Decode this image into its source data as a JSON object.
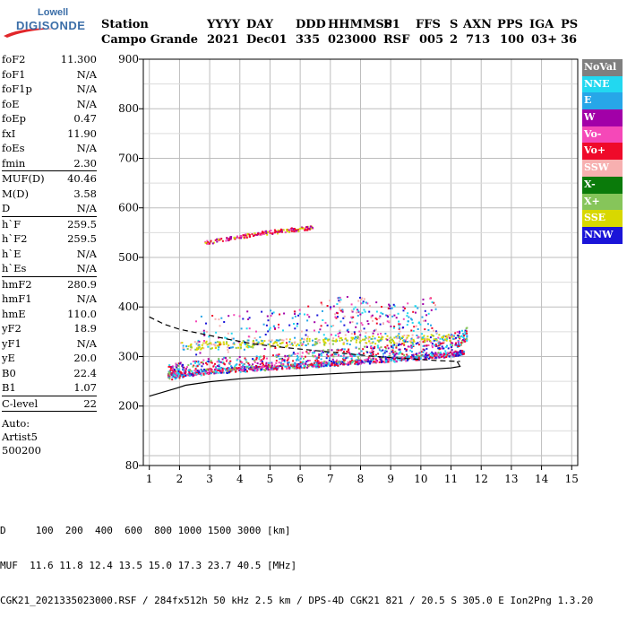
{
  "logo": {
    "line1": "Lowell",
    "line2": "DIGISONDE"
  },
  "header": {
    "labels": [
      "Station",
      "YYYY",
      "DAY",
      "DDD",
      "HHMMSS",
      "P1",
      "FFS",
      "S",
      "AXN",
      "PPS",
      "IGA",
      "PS"
    ],
    "values": [
      "Campo Grande",
      "2021",
      "Dec01",
      "335",
      "023000",
      "RSF",
      "005",
      "2",
      "713",
      "100",
      "03+",
      "36"
    ]
  },
  "params": {
    "group1": [
      {
        "k": "foF2",
        "v": "11.300"
      },
      {
        "k": "foF1",
        "v": "N/A"
      },
      {
        "k": "foF1p",
        "v": "N/A"
      },
      {
        "k": "foE",
        "v": "N/A"
      },
      {
        "k": "foEp",
        "v": "0.47"
      },
      {
        "k": "fxI",
        "v": "11.90"
      },
      {
        "k": "foEs",
        "v": "N/A"
      },
      {
        "k": "fmin",
        "v": "2.30"
      }
    ],
    "group2": [
      {
        "k": "MUF(D)",
        "v": "40.46"
      },
      {
        "k": "M(D)",
        "v": "3.58"
      },
      {
        "k": "D",
        "v": "N/A"
      }
    ],
    "group3": [
      {
        "k": "h`F",
        "v": "259.5"
      },
      {
        "k": "h`F2",
        "v": "259.5"
      },
      {
        "k": "h`E",
        "v": "N/A"
      },
      {
        "k": "h`Es",
        "v": "N/A"
      }
    ],
    "group4": [
      {
        "k": "hmF2",
        "v": "280.9"
      },
      {
        "k": "hmF1",
        "v": "N/A"
      },
      {
        "k": "hmE",
        "v": "110.0"
      },
      {
        "k": "yF2",
        "v": "18.9"
      },
      {
        "k": "yF1",
        "v": "N/A"
      },
      {
        "k": "yE",
        "v": "20.0"
      },
      {
        "k": "B0",
        "v": "22.4"
      },
      {
        "k": "B1",
        "v": "1.07"
      }
    ],
    "group5": [
      {
        "k": "C-level",
        "v": "22"
      }
    ],
    "auto": [
      "Auto:",
      "Artist5",
      "500200"
    ]
  },
  "legend": [
    {
      "label": "NoVal",
      "color": "#7f7f7f"
    },
    {
      "label": "NNE",
      "color": "#22d8f0"
    },
    {
      "label": "E",
      "color": "#27a6e8"
    },
    {
      "label": "W",
      "color": "#a200a8"
    },
    {
      "label": "Vo-",
      "color": "#f548b8"
    },
    {
      "label": "Vo+",
      "color": "#ef0a2a"
    },
    {
      "label": "SSW",
      "color": "#f7b0b0"
    },
    {
      "label": "X-",
      "color": "#0a7a0a"
    },
    {
      "label": "X+",
      "color": "#86c55a"
    },
    {
      "label": "SSE",
      "color": "#d8d800"
    },
    {
      "label": "NNW",
      "color": "#1a14d8"
    }
  ],
  "footer": {
    "line1": "D     100  200  400  600  800 1000 1500 3000 [km]",
    "line2": "MUF  11.6 11.8 12.4 13.5 15.0 17.3 23.7 40.5 [MHz]",
    "line3": "CGK21_2021335023000.RSF / 284fx512h 50 kHz 2.5 km / DPS-4D CGK21 821 / 20.5 S 305.0 E Ion2Png 1.3.20"
  },
  "chart_data": {
    "type": "scatter",
    "title": "",
    "xlabel": "",
    "ylabel": "",
    "xlim": [
      0.8,
      15.2
    ],
    "ylim": [
      80,
      900
    ],
    "xticks": [
      1,
      2,
      3,
      4,
      5,
      6,
      7,
      8,
      9,
      10,
      11,
      12,
      13,
      14,
      15
    ],
    "yticks": [
      80,
      200,
      300,
      400,
      500,
      600,
      700,
      800,
      900
    ],
    "grid": true,
    "legend_position": "right",
    "traces": [
      {
        "name": "O-trace lower",
        "x": [
          1.6,
          2.2,
          3.0,
          4.0,
          5.0,
          6.0,
          7.0,
          8.0,
          9.0,
          10.0,
          11.0,
          11.4
        ],
        "y": [
          262,
          268,
          272,
          276,
          280,
          283,
          287,
          291,
          295,
          300,
          306,
          310
        ]
      },
      {
        "name": "O-trace band",
        "x": [
          1.6,
          2.0,
          3.0,
          4.0,
          5.0,
          6.0,
          7.0,
          8.0,
          9.0,
          10.0,
          11.0,
          11.5
        ],
        "y": [
          268,
          275,
          282,
          286,
          290,
          295,
          300,
          305,
          310,
          318,
          330,
          345
        ]
      },
      {
        "name": "SSE band",
        "x": [
          2.0,
          3.0,
          4.0,
          5.0,
          6.0,
          7.0,
          8.0,
          9.0,
          10.0,
          11.0
        ],
        "y": [
          322,
          325,
          326,
          328,
          330,
          332,
          334,
          336,
          338,
          340
        ]
      },
      {
        "name": "multiple echo",
        "x": [
          2.8,
          3.5,
          4.0,
          4.5,
          5.0,
          5.5,
          6.0,
          6.4
        ],
        "y": [
          530,
          538,
          543,
          548,
          552,
          556,
          559,
          562
        ]
      },
      {
        "name": "upper echoes",
        "x": [
          2.5,
          3.5,
          4.5,
          5.5,
          6.5,
          7.2,
          7.6,
          8.0,
          8.5,
          9.0,
          9.5,
          10.0,
          10.5
        ],
        "y": [
          345,
          350,
          355,
          360,
          370,
          380,
          385,
          380,
          375,
          372,
          372,
          378,
          382
        ]
      }
    ],
    "profile": {
      "name": "electron density profile",
      "x": [
        1.9,
        2.2,
        3.0,
        4.0,
        5.0,
        6.0,
        7.0,
        8.0,
        9.0,
        10.0,
        10.5,
        11.0,
        11.3,
        11.2
      ],
      "y": [
        236,
        242,
        249,
        255,
        259,
        262,
        265,
        268,
        270,
        273,
        275,
        277,
        280,
        290
      ]
    },
    "profile_lower": {
      "x": [
        1.0,
        1.9
      ],
      "y": [
        220,
        236
      ]
    },
    "profile_dashed": {
      "x": [
        1.0,
        1.5,
        2.0,
        2.8,
        3.6,
        4.5,
        5.5,
        6.5,
        7.5,
        8.5,
        9.5,
        10.5,
        11.3
      ],
      "y": [
        380,
        365,
        355,
        345,
        335,
        325,
        318,
        312,
        306,
        300,
        296,
        292,
        290
      ]
    }
  }
}
